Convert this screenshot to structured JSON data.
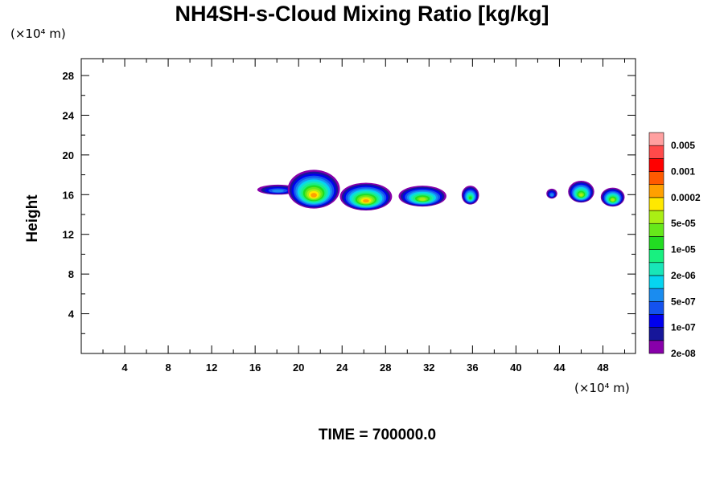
{
  "chart_data": {
    "type": "heatmap",
    "title": "NH4SH-s-Cloud Mixing Ratio [kg/kg]",
    "ylabel": "Height",
    "x_unit_label": "(×10⁴ m)",
    "y_unit_label": "(×10⁴ m)",
    "xlim": [
      0,
      51
    ],
    "ylim": [
      0,
      29.7
    ],
    "x_ticks": [
      "4",
      "8",
      "12",
      "16",
      "20",
      "24",
      "28",
      "32",
      "36",
      "40",
      "44",
      "48"
    ],
    "y_ticks": [
      "4",
      "8",
      "12",
      "16",
      "20",
      "24",
      "28"
    ],
    "colorbar": {
      "labels": [
        "0.005",
        "0.001",
        "0.0002",
        "5e-05",
        "1e-05",
        "2e-06",
        "5e-07",
        "1e-07",
        "2e-08"
      ],
      "colors": [
        "#8800aa",
        "#16169a",
        "#0000ee",
        "#1452ee",
        "#1a8cf0",
        "#06d4f0",
        "#18e6b8",
        "#18f080",
        "#22dc22",
        "#66e81a",
        "#aaee14",
        "#ffe800",
        "#ffa000",
        "#ff5a00",
        "#ff0000",
        "#ff4a4a",
        "#ffa0a0"
      ]
    },
    "cloud_regions": [
      {
        "x_range": [
          16.2,
          20.0
        ],
        "top": 17.0,
        "base": 16.0,
        "peak_level": "1e-07"
      },
      {
        "x_range": [
          19.0,
          23.8
        ],
        "top": 18.5,
        "base": 14.6,
        "peak_level": "5e-05"
      },
      {
        "x_range": [
          23.8,
          28.6
        ],
        "top": 17.2,
        "base": 14.4,
        "peak_level": "5e-05"
      },
      {
        "x_range": [
          29.2,
          33.6
        ],
        "top": 16.9,
        "base": 14.8,
        "peak_level": "1e-05"
      },
      {
        "x_range": [
          35.0,
          36.6
        ],
        "top": 16.9,
        "base": 15.0,
        "peak_level": "2e-06"
      },
      {
        "x_range": [
          42.8,
          43.8
        ],
        "top": 16.6,
        "base": 15.6,
        "peak_level": "1e-07"
      },
      {
        "x_range": [
          44.8,
          47.2
        ],
        "top": 17.4,
        "base": 15.2,
        "peak_level": "1e-05"
      },
      {
        "x_range": [
          47.8,
          50.0
        ],
        "top": 16.7,
        "base": 14.8,
        "peak_level": "1e-05"
      }
    ]
  },
  "footer": {
    "time_label": "TIME = 700000.0"
  }
}
